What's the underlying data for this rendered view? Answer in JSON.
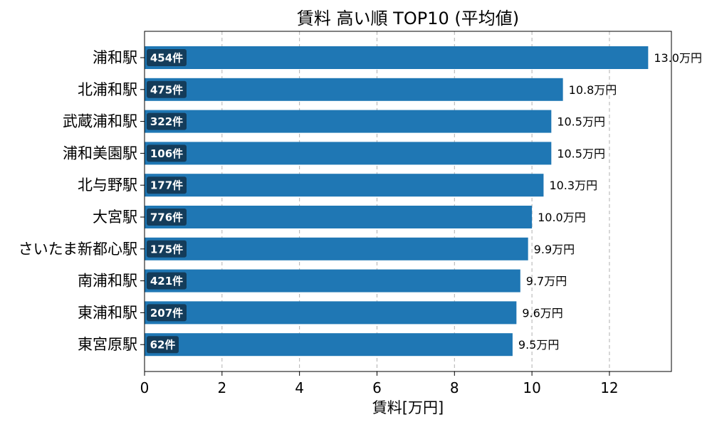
{
  "chart_data": {
    "type": "bar",
    "orientation": "horizontal",
    "title": "賃料 高い順 TOP10 (平均値)",
    "xlabel": "賃料[万円]",
    "ylabel": "",
    "xlim": [
      0,
      13.6
    ],
    "xticks": [
      0,
      2,
      4,
      6,
      8,
      10,
      12
    ],
    "grid": "x",
    "value_suffix": "万円",
    "count_suffix": "件",
    "categories": [
      "浦和駅",
      "北浦和駅",
      "武蔵浦和駅",
      "浦和美園駅",
      "北与野駅",
      "大宮駅",
      "さいたま新都心駅",
      "南浦和駅",
      "東浦和駅",
      "東宮原駅"
    ],
    "values": [
      13.0,
      10.8,
      10.5,
      10.5,
      10.3,
      10.0,
      9.9,
      9.7,
      9.6,
      9.5
    ],
    "value_labels": [
      "13.0万円",
      "10.8万円",
      "10.5万円",
      "10.5万円",
      "10.3万円",
      "10.0万円",
      "9.9万円",
      "9.7万円",
      "9.6万円",
      "9.5万円"
    ],
    "counts": [
      454,
      475,
      322,
      106,
      177,
      776,
      175,
      421,
      207,
      62
    ],
    "count_labels": [
      "454件",
      "475件",
      "322件",
      "106件",
      "177件",
      "776件",
      "175件",
      "421件",
      "207件",
      "62件"
    ],
    "colors": {
      "bar": "#1f77b4",
      "count_badge": "#143c5a"
    }
  }
}
